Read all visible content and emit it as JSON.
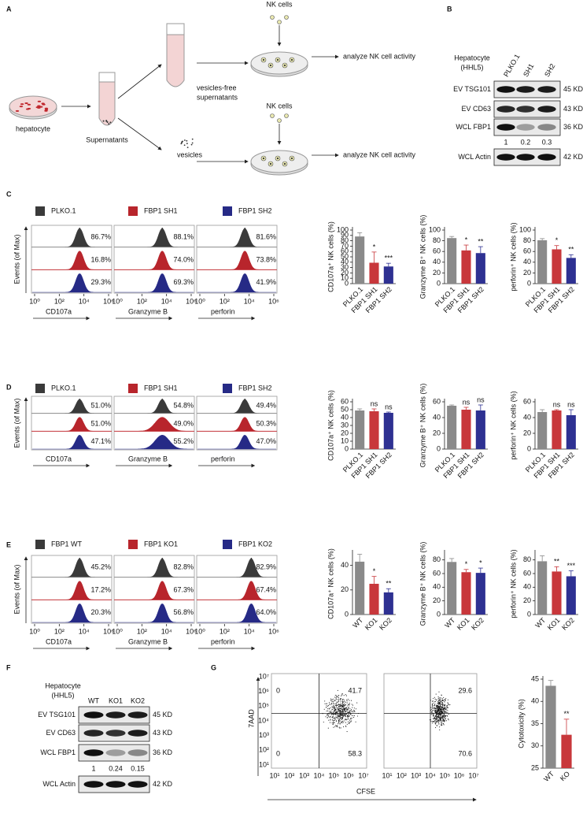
{
  "a": {
    "letter": "A",
    "hepatocyte": "hepatocyte",
    "supernatants": "Supernatants",
    "vesicles_free": [
      "vesicles-free",
      "supernatants"
    ],
    "vesicles": "vesicles",
    "nk_cells": [
      "NK cells",
      "NK cells"
    ],
    "analyze": [
      "analyze NK cell activity",
      "analyze  NK cell activity"
    ]
  },
  "b": {
    "letter": "B",
    "header": [
      "Hepatocyte",
      "(HHL5)"
    ],
    "lanes": [
      "PLKO.1",
      "SH1",
      "SH2"
    ],
    "rows": [
      {
        "label": "EV TSG101",
        "size": "45 KD"
      },
      {
        "label": "EV CD63",
        "size": "43 KD"
      },
      {
        "label": "WCL FBP1",
        "size": "36 KD"
      },
      {
        "label": "WCL Actin",
        "size": "42 KD"
      }
    ],
    "quant": [
      "1",
      "0.2",
      "0.3"
    ]
  },
  "c": {
    "letter": "C",
    "legend": [
      "PLKO.1",
      "FBP1 SH1",
      "FBP1 SH2"
    ],
    "colors": [
      "#3a3a3a",
      "#b8252c",
      "#262a86"
    ],
    "bar_colors": [
      "#8a8a8a",
      "#c8373b",
      "#2e3192"
    ],
    "y_label": "Events (of Max)",
    "x_ticks": [
      "10⁰",
      "10²",
      "10⁴",
      "10⁶"
    ],
    "histograms": [
      {
        "x_label": "CD107a",
        "percents": [
          "86.7%",
          "16.8%",
          "29.3%"
        ]
      },
      {
        "x_label": "Granzyme B",
        "percents": [
          "88.1%",
          "74.0%",
          "69.3%"
        ]
      },
      {
        "x_label": "perforin",
        "percents": [
          "81.6%",
          "73.8%",
          "41.9%"
        ]
      }
    ],
    "bars": [
      {
        "y_label": "CD107a⁺ NK cells (%)",
        "ylim": [
          0,
          100
        ],
        "yticks": [
          0,
          10,
          20,
          30,
          40,
          50,
          60,
          70,
          80,
          90,
          100
        ],
        "categories": [
          "PLKO.1",
          "FBP1 SH1",
          "FBP1 SH2"
        ],
        "values": [
          88,
          39,
          32
        ],
        "errors": [
          7,
          20,
          6
        ],
        "significance": [
          null,
          "*",
          "***"
        ]
      },
      {
        "y_label": "Granzyme B⁺ NK cells (%)",
        "ylim": [
          0,
          100
        ],
        "yticks": [
          0,
          20,
          40,
          60,
          80,
          100
        ],
        "categories": [
          "PLKO.1",
          "FBP1 SH1",
          "FBP1 SH2"
        ],
        "values": [
          85,
          62,
          57
        ],
        "errors": [
          3,
          10,
          12
        ],
        "significance": [
          null,
          "*",
          "**"
        ]
      },
      {
        "y_label": "perforin⁺ NK cells (%)",
        "ylim": [
          0,
          100
        ],
        "yticks": [
          0,
          20,
          40,
          60,
          80,
          100
        ],
        "categories": [
          "PLKO.1",
          "FBP1 SH1",
          "FBP1 SH2"
        ],
        "values": [
          81,
          64,
          48
        ],
        "errors": [
          3,
          7,
          6
        ],
        "significance": [
          null,
          "*",
          "**"
        ]
      }
    ]
  },
  "d": {
    "letter": "D",
    "legend": [
      "PLKO.1",
      "FBP1 SH1",
      "FBP1 SH2"
    ],
    "colors": [
      "#3a3a3a",
      "#b8252c",
      "#262a86"
    ],
    "bar_colors": [
      "#8a8a8a",
      "#c8373b",
      "#2e3192"
    ],
    "y_label": "Events (of Max)",
    "histograms": [
      {
        "x_label": "CD107a",
        "percents": [
          "51.0%",
          "51.0%",
          "47.1%"
        ]
      },
      {
        "x_label": "Granzyme B",
        "percents": [
          "54.8%",
          "49.0%",
          "55.2%"
        ]
      },
      {
        "x_label": "perforin",
        "percents": [
          "49.4%",
          "50.3%",
          "47.0%"
        ]
      }
    ],
    "bars": [
      {
        "y_label": "CD107a⁺ NK cells (%)",
        "ylim": [
          0,
          60
        ],
        "yticks": [
          0,
          10,
          20,
          30,
          40,
          50,
          60
        ],
        "categories": [
          "PLKO.1",
          "FBP1 SH1",
          "FBP1 SH2"
        ],
        "values": [
          49,
          48,
          46
        ],
        "errors": [
          2,
          3,
          1
        ],
        "significance": [
          null,
          "ns",
          "ns"
        ]
      },
      {
        "y_label": "Granzyme B⁺ NK cells (%)",
        "ylim": [
          0,
          60
        ],
        "yticks": [
          0,
          20,
          40,
          60
        ],
        "categories": [
          "PLKO.1",
          "FBP1 SH1",
          "FBP1 SH2"
        ],
        "values": [
          55,
          50,
          49
        ],
        "errors": [
          1,
          3,
          7
        ],
        "significance": [
          null,
          "ns",
          "ns"
        ]
      },
      {
        "y_label": "perforin⁺ NK cells (%)",
        "ylim": [
          0,
          60
        ],
        "yticks": [
          0,
          20,
          40,
          60
        ],
        "categories": [
          "PLKO.1",
          "FBP1 SH1",
          "FBP1 SH2"
        ],
        "values": [
          47,
          49,
          43
        ],
        "errors": [
          3,
          1,
          7
        ],
        "significance": [
          null,
          "ns",
          "ns"
        ]
      }
    ]
  },
  "e": {
    "letter": "E",
    "legend": [
      "FBP1 WT",
      "FBP1 KO1",
      "FBP1 KO2"
    ],
    "colors": [
      "#3a3a3a",
      "#b8252c",
      "#262a86"
    ],
    "bar_colors": [
      "#8a8a8a",
      "#c8373b",
      "#2e3192"
    ],
    "y_label": "Events (of Max)",
    "x_ticks": [
      "10⁰",
      "10²",
      "10⁴",
      "10⁶"
    ],
    "histograms": [
      {
        "x_label": "CD107a",
        "percents": [
          "45.2%",
          "17.2%",
          "20.3%"
        ]
      },
      {
        "x_label": "Granzyme B",
        "percents": [
          "82.8%",
          "67.3%",
          "56.8%"
        ]
      },
      {
        "x_label": "perforin",
        "percents": [
          "82.9%",
          "67.4%",
          "64.0%"
        ]
      }
    ],
    "bars": [
      {
        "y_label": "CD107a⁺ NK cells (%)",
        "ylim": [
          0,
          50
        ],
        "yticks": [
          0,
          20,
          40
        ],
        "categories": [
          "WT",
          "KO1",
          "KO2"
        ],
        "values": [
          43,
          25,
          18
        ],
        "errors": [
          6,
          6,
          3
        ],
        "significance": [
          null,
          "*",
          "**"
        ]
      },
      {
        "y_label": "Granzyme B⁺ NK cells (%)",
        "ylim": [
          0,
          90
        ],
        "yticks": [
          0,
          20,
          40,
          60,
          80
        ],
        "categories": [
          "WT",
          "KO1",
          "KO2"
        ],
        "values": [
          77,
          62,
          61
        ],
        "errors": [
          5,
          4,
          7
        ],
        "significance": [
          null,
          "*",
          "*"
        ]
      },
      {
        "y_label": "perforin⁺ NK cells (%)",
        "ylim": [
          0,
          90
        ],
        "yticks": [
          0,
          20,
          40,
          60,
          80
        ],
        "categories": [
          "WT",
          "KO1",
          "KO2"
        ],
        "values": [
          78,
          63,
          56
        ],
        "errors": [
          8,
          7,
          8
        ],
        "significance": [
          null,
          "**",
          "***"
        ]
      }
    ]
  },
  "f": {
    "letter": "F",
    "header": [
      "Hepatocyte",
      "(HHL5)"
    ],
    "lanes": [
      "WT",
      "KO1",
      "KO2"
    ],
    "rows": [
      {
        "label": "EV TSG101",
        "size": "45 KD"
      },
      {
        "label": "EV CD63",
        "size": "43 KD"
      },
      {
        "label": "WCL FBP1",
        "size": "36 KD"
      },
      {
        "label": "WCL Actin",
        "size": "42 KD"
      }
    ],
    "quant": [
      "1",
      "0.24",
      "0.15"
    ]
  },
  "g": {
    "letter": "G",
    "y_label": "7AAD",
    "x_label": "CFSE",
    "ticks": [
      "10¹",
      "10²",
      "10³",
      "10⁴",
      "10⁵",
      "10⁶",
      "10⁷"
    ],
    "plots": [
      [
        "0",
        "41.7",
        "0",
        "58.3"
      ],
      [
        null,
        "29.6",
        null,
        "70.6"
      ]
    ],
    "bar": {
      "y_label": "Cytotoxicity (%)",
      "ylim": [
        25,
        45
      ],
      "yticks": [
        25,
        30,
        35,
        40,
        45
      ],
      "categories": [
        "WT",
        "KO"
      ],
      "values": [
        43.5,
        32.5
      ],
      "errors": [
        1.2,
        3.5
      ],
      "significance": [
        null,
        "**"
      ],
      "colors": [
        "#8a8a8a",
        "#c8373b"
      ]
    }
  }
}
